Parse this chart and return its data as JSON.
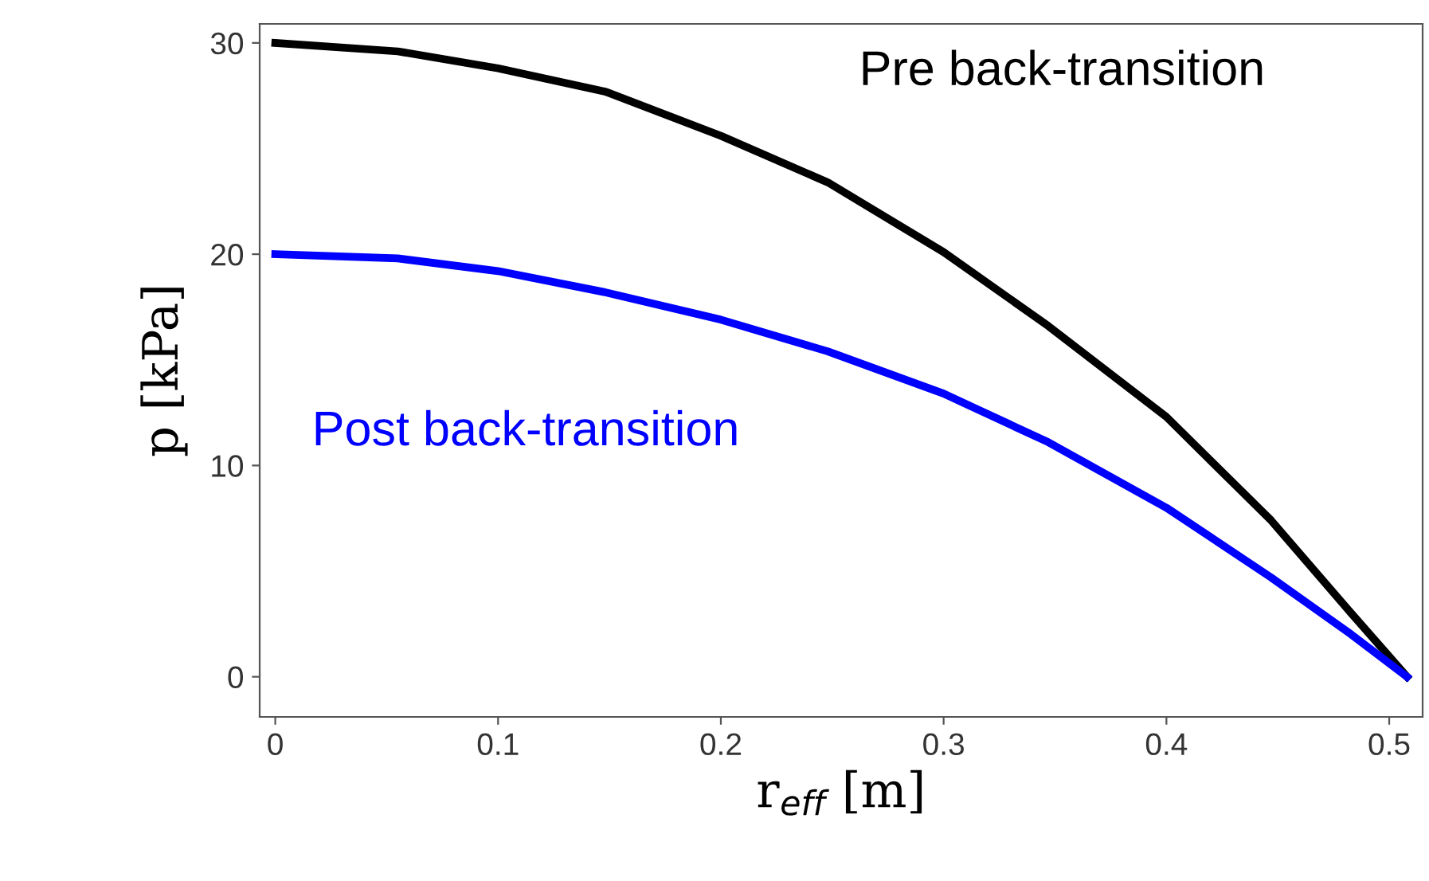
{
  "chart_data": {
    "type": "line",
    "xlabel": "r$_{eff}$ [m]",
    "ylabel": "p [kPa]",
    "xlim": [
      -0.007,
      0.515
    ],
    "ylim": [
      -1.9,
      30.9
    ],
    "xticks": [
      0,
      0.1,
      0.2,
      0.3,
      0.4,
      0.5
    ],
    "yticks": [
      0,
      10,
      20,
      30
    ],
    "grid": false,
    "legend": false,
    "marker": "none",
    "line_style": "solid",
    "series": [
      {
        "name": "Pre back-transition",
        "color": "#000000",
        "x": [
          0,
          0.055,
          0.1,
          0.148,
          0.2,
          0.248,
          0.3,
          0.347,
          0.4,
          0.447,
          0.483,
          0.508
        ],
        "values": [
          30,
          29.6,
          28.8,
          27.7,
          25.6,
          23.4,
          20.1,
          16.6,
          12.3,
          7.4,
          3.0,
          0
        ]
      },
      {
        "name": "Post back-transition",
        "color": "#0000ff",
        "x": [
          0,
          0.055,
          0.1,
          0.148,
          0.2,
          0.248,
          0.3,
          0.347,
          0.4,
          0.447,
          0.483,
          0.508
        ],
        "values": [
          20,
          19.8,
          19.2,
          18.2,
          16.9,
          15.4,
          13.4,
          11.1,
          8.0,
          4.7,
          2.0,
          0
        ]
      }
    ]
  }
}
